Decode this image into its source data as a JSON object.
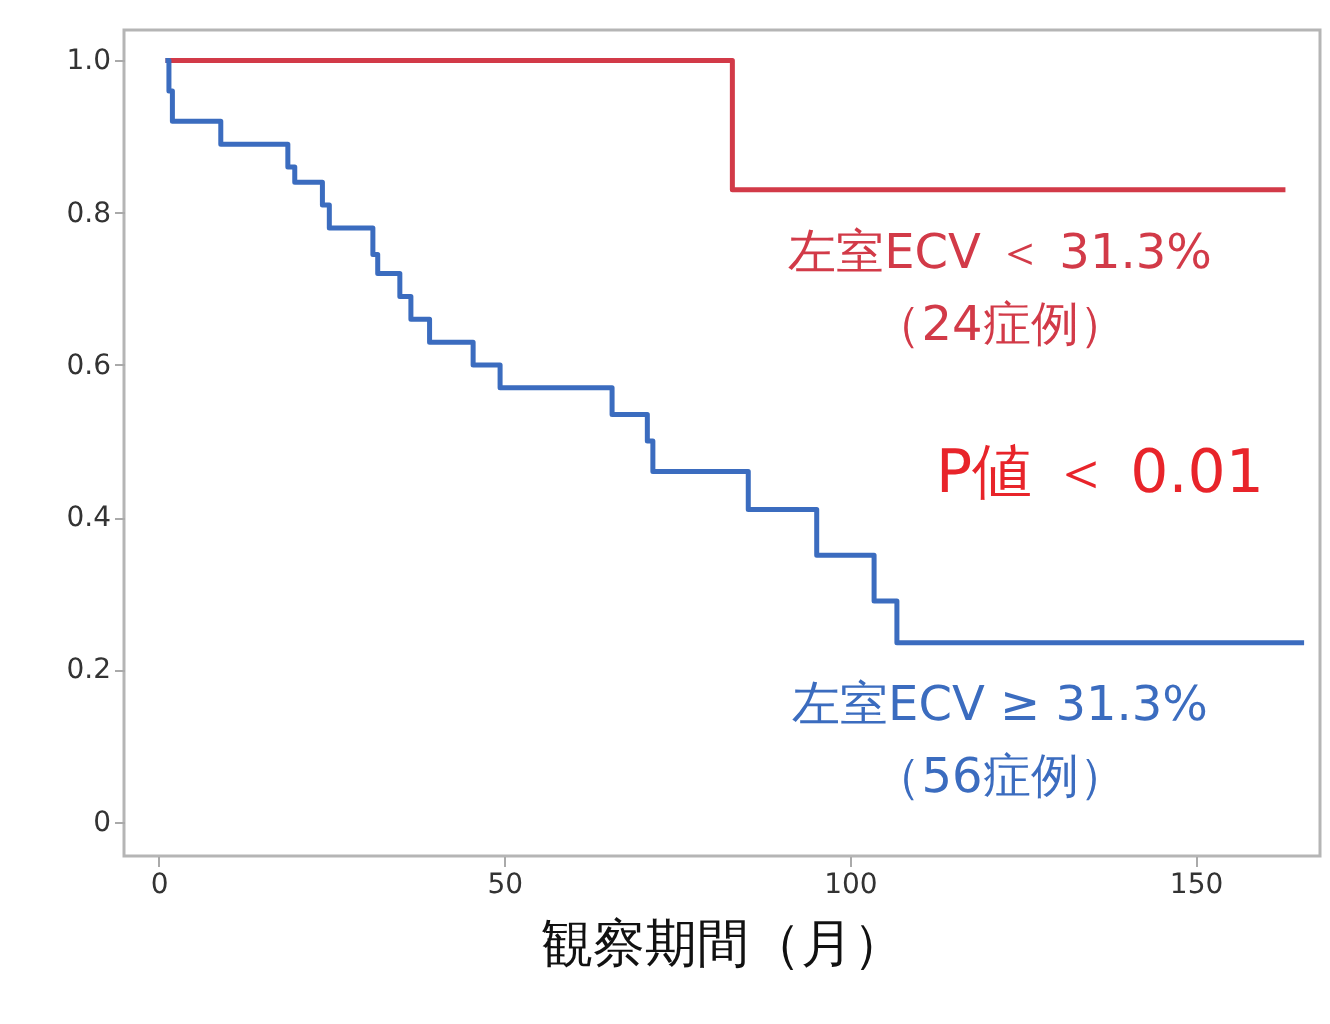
{
  "chart_data": {
    "type": "step",
    "xlabel": "観察期間（月）",
    "xlim": [
      -5,
      168
    ],
    "ylim": [
      -0.045,
      1.04
    ],
    "xticks": [
      0,
      50,
      100,
      150
    ],
    "yticks": [
      0,
      {
        "value": 0.2,
        "label": "0.2"
      },
      {
        "value": 0.4,
        "label": "0.4"
      },
      {
        "value": 0.6,
        "label": "0.6"
      },
      {
        "value": 0.8,
        "label": "0.8"
      },
      {
        "value": 1,
        "label": "1.0"
      }
    ],
    "grid": false,
    "legend": false,
    "marker": "none",
    "line_style": "solid",
    "series": [
      {
        "name": "左室ECV ＜ 31.3%\n（24症例）",
        "color": "#d23a48",
        "x": [
          1,
          83,
          163
        ],
        "values": [
          1,
          0.83,
          0.83
        ]
      },
      {
        "name": "左室ECV ≥ 31.3%\n（56症例）",
        "color": "#3b6cbf",
        "x": [
          1,
          1.5,
          2,
          9,
          18.7,
          19.7,
          23.7,
          24.7,
          31,
          31.7,
          34.9,
          36.5,
          39.2,
          45.5,
          49.4,
          65.6,
          70.7,
          71.5,
          85.3,
          95.2,
          103.5,
          106.8,
          165.7
        ],
        "values": [
          1,
          0.96,
          0.92,
          0.89,
          0.86,
          0.84,
          0.81,
          0.78,
          0.745,
          0.72,
          0.69,
          0.66,
          0.63,
          0.6,
          0.57,
          0.535,
          0.5,
          0.46,
          0.41,
          0.35,
          0.29,
          0.235,
          0.235
        ]
      }
    ],
    "annotations": [
      "P値 ＜ 0.01"
    ]
  }
}
